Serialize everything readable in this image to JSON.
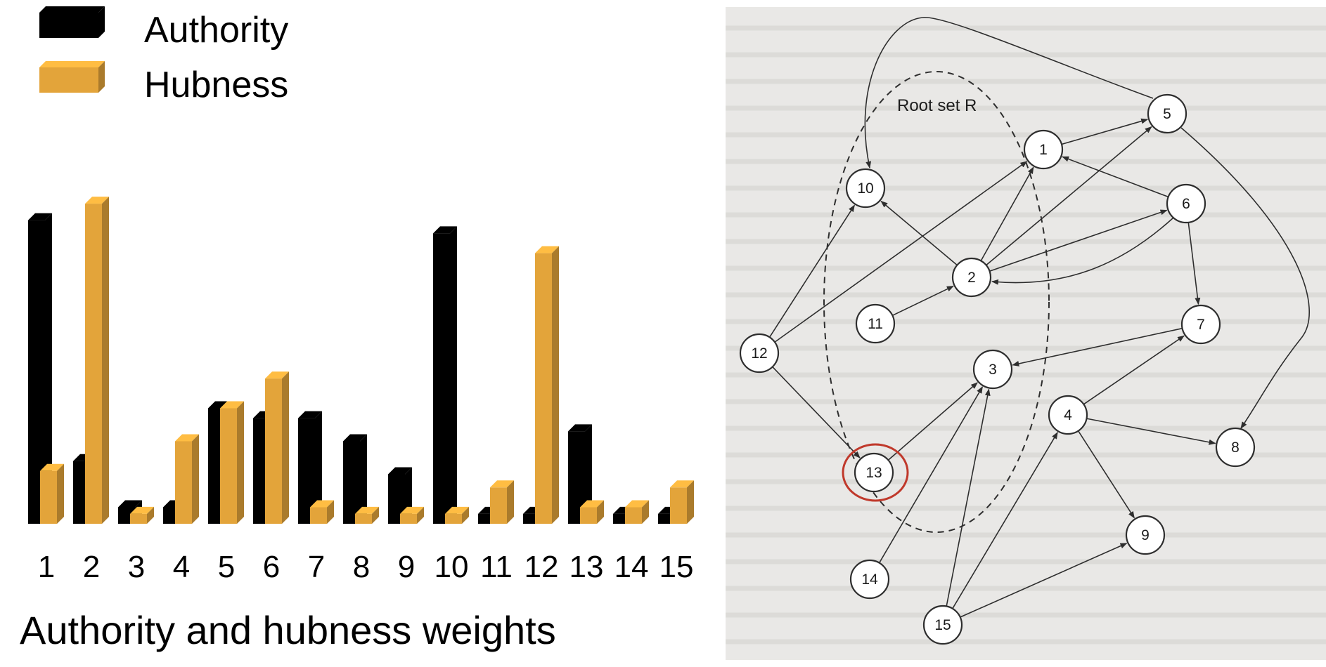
{
  "chart_data": {
    "type": "bar",
    "title": "Authority and hubness weights",
    "categories": [
      "1",
      "2",
      "3",
      "4",
      "5",
      "6",
      "7",
      "8",
      "9",
      "10",
      "11",
      "12",
      "13",
      "14",
      "15"
    ],
    "series": [
      {
        "name": "Authority",
        "color": "#000000",
        "values": [
          0.92,
          0.19,
          0.05,
          0.05,
          0.35,
          0.32,
          0.32,
          0.25,
          0.15,
          0.88,
          0.03,
          0.03,
          0.28,
          0.03,
          0.03
        ]
      },
      {
        "name": "Hubness",
        "color": "#e3a43a",
        "values": [
          0.16,
          0.97,
          0.03,
          0.25,
          0.35,
          0.44,
          0.05,
          0.03,
          0.03,
          0.03,
          0.11,
          0.82,
          0.05,
          0.05,
          0.11
        ]
      }
    ],
    "ylim": [
      0,
      1
    ],
    "legend": "top-left",
    "grid": false,
    "xlabel": "",
    "ylabel": ""
  },
  "graph": {
    "root_set_label": "Root set R",
    "highlight_color": "#c0392b",
    "highlighted_node": "13",
    "nodes": [
      "1",
      "2",
      "3",
      "4",
      "5",
      "6",
      "7",
      "8",
      "9",
      "10",
      "11",
      "12",
      "13",
      "14",
      "15"
    ],
    "edges": [
      [
        "12",
        "10"
      ],
      [
        "12",
        "1"
      ],
      [
        "12",
        "13"
      ],
      [
        "2",
        "10"
      ],
      [
        "2",
        "1"
      ],
      [
        "2",
        "5"
      ],
      [
        "2",
        "6"
      ],
      [
        "11",
        "2"
      ],
      [
        "1",
        "5"
      ],
      [
        "6",
        "1"
      ],
      [
        "6",
        "2"
      ],
      [
        "6",
        "7"
      ],
      [
        "7",
        "3"
      ],
      [
        "4",
        "7"
      ],
      [
        "4",
        "8"
      ],
      [
        "4",
        "9"
      ],
      [
        "13",
        "3"
      ],
      [
        "14",
        "3"
      ],
      [
        "15",
        "3"
      ],
      [
        "15",
        "4"
      ],
      [
        "15",
        "9"
      ],
      [
        "5",
        "10"
      ],
      [
        "5",
        "8"
      ]
    ]
  }
}
